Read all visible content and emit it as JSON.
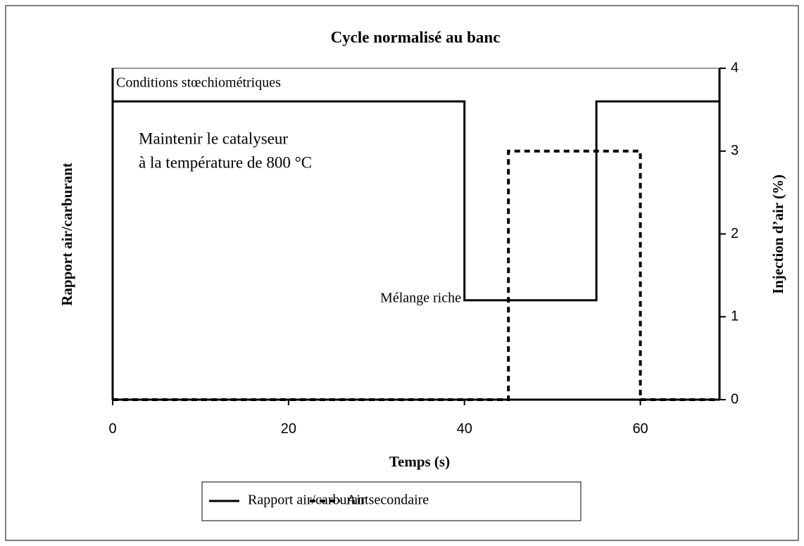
{
  "chart_data": {
    "type": "line",
    "title": "Cycle normalisé au banc",
    "xlabel": "Temps (s)",
    "ylabel": "Rapport air/carburant",
    "y2label": "Injection d’air (%)",
    "annotations": [
      "Conditions stœchiométriques",
      "Maintenir le catalyseur",
      "à la température de 800 °C",
      "Mélange riche"
    ],
    "xlim": [
      0,
      69
    ],
    "xticks": [
      0,
      20,
      40,
      60
    ],
    "ylim": [
      0,
      4
    ],
    "y2lim": [
      0,
      4
    ],
    "y2ticks": [
      0,
      1,
      2,
      3,
      4
    ],
    "series": [
      {
        "name": "Rapport air/carburant",
        "color": "#000000",
        "dash": "solid",
        "x": [
          0,
          40,
          40,
          55,
          55,
          69
        ],
        "values": [
          3.6,
          3.6,
          1.2,
          1.2,
          3.6,
          3.6
        ]
      },
      {
        "name": "Air secondaire",
        "color": "#000000",
        "dash": "dotted",
        "axis": "y2",
        "x": [
          0,
          45,
          45,
          60,
          60,
          69
        ],
        "values": [
          0,
          0,
          3,
          3,
          0,
          0
        ]
      }
    ]
  }
}
